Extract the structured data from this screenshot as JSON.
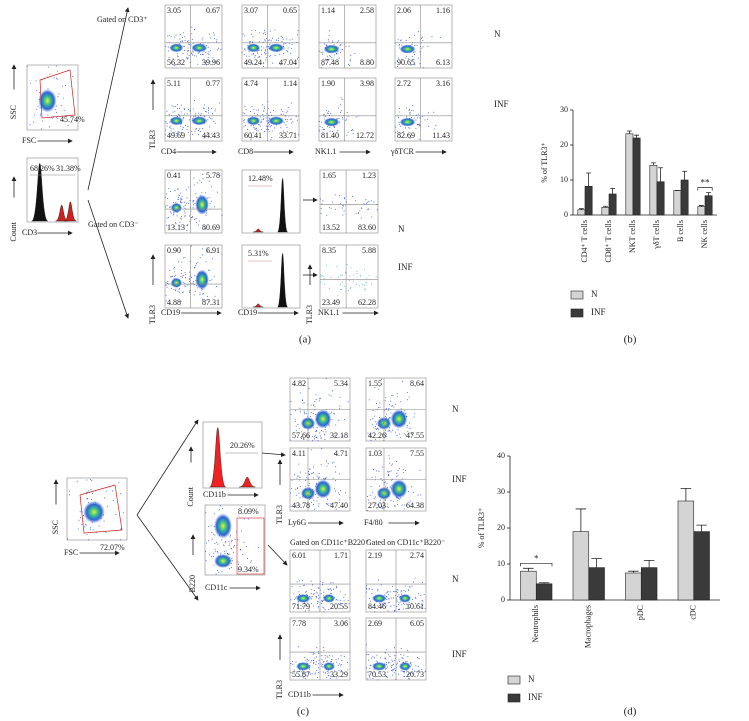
{
  "panel_a": {
    "label": "(a)",
    "gate_plot": {
      "y_label": "SSC",
      "x_label": "FSC",
      "percent": "45.74%"
    },
    "cd3_hist": {
      "y_label": "Count",
      "x_label": "CD3",
      "left": "68.26%",
      "right": "31.38%"
    },
    "gate_pos": "Gated on CD3⁺",
    "gate_neg": "Gated on CD3⁻",
    "t_cells": {
      "y_label": "TLR3",
      "row_labels": [
        "N",
        "INF"
      ],
      "x_labels": [
        "CD4",
        "CD8",
        "NK1.1",
        "γδTCR"
      ],
      "quadrants": [
        [
          [
            "3.05",
            "0.67",
            "56.32",
            "39.96"
          ],
          [
            "3.07",
            "0.65",
            "49.24",
            "47.04"
          ],
          [
            "1.14",
            "2.58",
            "87.48",
            "8.80"
          ],
          [
            "2.06",
            "1.16",
            "90.65",
            "6.13"
          ]
        ],
        [
          [
            "5.11",
            "0.77",
            "49.69",
            "44.43"
          ],
          [
            "4.74",
            "1.14",
            "60.41",
            "33.71"
          ],
          [
            "1.90",
            "3.98",
            "81.40",
            "12.72"
          ],
          [
            "2.72",
            "3.16",
            "82.69",
            "11.43"
          ]
        ]
      ]
    },
    "b_cells": {
      "y_label": "TLR3",
      "x_label": "CD19",
      "quadrants": [
        [
          "0.41",
          "5.78",
          "13.13",
          "80.69"
        ],
        [
          "0.90",
          "6.91",
          "4.88",
          "87.31"
        ]
      ]
    },
    "cd19_hist": {
      "x_label": "CD19",
      "percents": [
        "12.48%",
        "5.31%"
      ]
    },
    "nk_cells": {
      "y_label": "TLR3",
      "x_label": "NK1.1",
      "row_labels": [
        "N",
        "INF"
      ],
      "quadrants": [
        [
          "1.65",
          "1.23",
          "13.52",
          "83.60"
        ],
        [
          "8.35",
          "5.88",
          "23.49",
          "62.28"
        ]
      ]
    }
  },
  "panel_c": {
    "label": "(c)",
    "gate_plot": {
      "y_label": "SSC",
      "x_label": "FSC",
      "percent": "72.07%"
    },
    "cd11b_hist": {
      "y_label": "Count",
      "x_label": "CD11b",
      "percent": "20.26%"
    },
    "dc_plot": {
      "y_label": "B220",
      "x_label": "CD11c",
      "upper": "8.09%",
      "lower": "9.34%"
    },
    "myeloid": {
      "y_label": "TLR3",
      "row_labels": [
        "N",
        "INF"
      ],
      "x_labels": [
        "Ly6G",
        "F4/80"
      ],
      "quadrants": [
        [
          [
            "4.82",
            "5.34",
            "57.66",
            "32.18"
          ],
          [
            "1.55",
            "8.64",
            "42.26",
            "47.55"
          ]
        ],
        [
          [
            "4.11",
            "4.71",
            "43.78",
            "47.40"
          ],
          [
            "1.03",
            "7.55",
            "27.03",
            "64.38"
          ]
        ]
      ]
    },
    "dcs": {
      "y_label": "TLR3",
      "x_label": "CD11b",
      "row_labels": [
        "N",
        "INF"
      ],
      "gates": [
        "Gated on CD11c⁺B220⁺",
        "Gated on CD11c⁺B220⁻"
      ],
      "quadrants": [
        [
          [
            "6.01",
            "1.71",
            "71.79",
            "20.55"
          ],
          [
            "2.19",
            "2.74",
            "84.46",
            "10.61"
          ]
        ],
        [
          [
            "7.78",
            "3.06",
            "55.87",
            "33.29"
          ],
          [
            "2.69",
            "6.05",
            "70.53",
            "20.73"
          ]
        ]
      ]
    }
  },
  "chart_data": [
    {
      "type": "bar",
      "label": "(b)",
      "y_label": "% of TLR3⁺",
      "ylim": [
        0,
        30
      ],
      "yticks": [
        0,
        10,
        20,
        30
      ],
      "categories": [
        "CD4⁺ T cells",
        "CD8⁺ T cells",
        "NKT cells",
        "γδT cells",
        "B cells",
        "NK cells"
      ],
      "series": [
        {
          "name": "N",
          "color": "#d4d4d4",
          "values": [
            1.5,
            2.2,
            23.2,
            14.2,
            7.0,
            2.4
          ],
          "errors": [
            0.3,
            0.3,
            0.8,
            0.7,
            0,
            0.3
          ]
        },
        {
          "name": "INF",
          "color": "#3a3a3a",
          "values": [
            8.2,
            6.0,
            22.0,
            9.5,
            10.0,
            5.5
          ],
          "errors": [
            3.8,
            1.6,
            0.8,
            4.0,
            2.5,
            0.9
          ]
        }
      ],
      "annotation": {
        "text": "**",
        "category": "NK cells"
      }
    },
    {
      "type": "bar",
      "label": "(d)",
      "y_label": "% of TLR3⁺",
      "ylim": [
        0,
        40
      ],
      "yticks": [
        0,
        10,
        20,
        30,
        40
      ],
      "categories": [
        "Neutrophils",
        "Macrophages",
        "pDC",
        "cDC"
      ],
      "series": [
        {
          "name": "N",
          "color": "#d4d4d4",
          "values": [
            8,
            19,
            7.5,
            27.5
          ],
          "errors": [
            0.8,
            6.3,
            0.5,
            3.5
          ]
        },
        {
          "name": "INF",
          "color": "#3a3a3a",
          "values": [
            4.5,
            9,
            9,
            19
          ],
          "errors": [
            0.3,
            2.5,
            2,
            1.8
          ]
        }
      ],
      "annotation": {
        "text": "*",
        "category": "Neutrophils"
      }
    }
  ]
}
